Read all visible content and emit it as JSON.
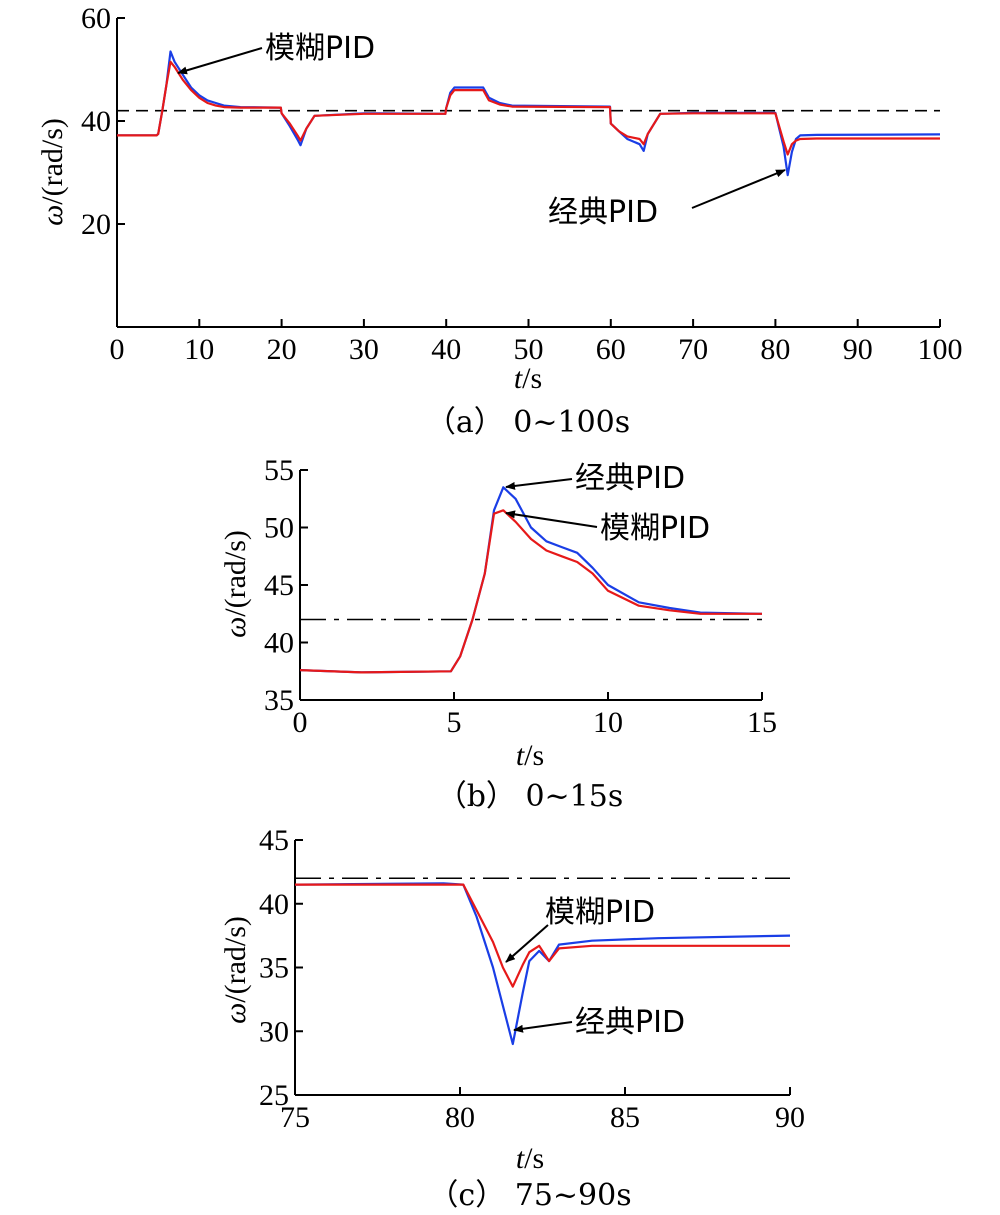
{
  "chart_data": [
    {
      "type": "line",
      "caption": "（a） 0~100s",
      "xlabel": "t/s",
      "ylabel": "ω/(rad/s)",
      "xlim": [
        0,
        100
      ],
      "ylim": [
        0,
        60
      ],
      "xticks": [
        0,
        10,
        20,
        30,
        40,
        50,
        60,
        70,
        80,
        90,
        100
      ],
      "yticks": [
        20,
        40,
        60
      ],
      "reference": {
        "y": 42,
        "style": "dashed"
      },
      "series": [
        {
          "name": "经典PID",
          "color": "#1a3ee6",
          "x": [
            0,
            4.8,
            5.0,
            5.5,
            6.0,
            6.5,
            7,
            8,
            9,
            10,
            11,
            12,
            13,
            15,
            19.9,
            20.0,
            21,
            22,
            22.3,
            23,
            24,
            30,
            39.9,
            40.0,
            40.5,
            41,
            44.5,
            45.2,
            46.5,
            48,
            59.9,
            60.0,
            61,
            62,
            63.5,
            64,
            64.5,
            66,
            70,
            79.9,
            80.0,
            81,
            81.5,
            82,
            82.5,
            83,
            85,
            100
          ],
          "y": [
            37.2,
            37.2,
            37.5,
            42,
            47,
            53.5,
            51.5,
            49,
            46.5,
            45,
            44,
            43.5,
            43,
            42.7,
            42.6,
            41.5,
            39,
            36.2,
            35.3,
            38.5,
            41,
            41.5,
            41.4,
            42.5,
            45.5,
            46.5,
            46.5,
            44.5,
            43.5,
            43,
            42.8,
            39.5,
            38,
            36.5,
            35.5,
            34.2,
            37.5,
            41.4,
            41.6,
            41.6,
            41.6,
            35,
            29.5,
            34,
            36.5,
            37.2,
            37.3,
            37.4
          ]
        },
        {
          "name": "模糊PID",
          "color": "#e61919",
          "x": [
            0,
            4.8,
            5.0,
            5.5,
            6.0,
            6.5,
            7,
            8,
            9,
            10,
            11,
            12,
            13,
            15,
            19.9,
            20.0,
            21,
            22,
            22.3,
            23,
            24,
            30,
            39.9,
            40.0,
            40.5,
            41,
            44.5,
            45.2,
            46.5,
            48,
            59.9,
            60.0,
            61,
            62,
            63.5,
            64,
            64.5,
            66,
            70,
            79.9,
            80.0,
            81,
            81.5,
            82,
            82.5,
            83,
            85,
            100
          ],
          "y": [
            37.2,
            37.2,
            37.5,
            42,
            47,
            51.5,
            50.5,
            48,
            46,
            44.5,
            43.5,
            43,
            42.7,
            42.6,
            42.6,
            41.5,
            39.5,
            37,
            36.2,
            38.5,
            41,
            41.4,
            41.4,
            42.5,
            45,
            46,
            46,
            44,
            43.2,
            42.8,
            42.7,
            39.5,
            38,
            37,
            36.5,
            35.5,
            37.5,
            41.4,
            41.5,
            41.5,
            41.5,
            36,
            33.5,
            35.5,
            36.2,
            36.5,
            36.6,
            36.6
          ]
        }
      ],
      "annotations": [
        "模糊PID",
        "经典PID"
      ]
    },
    {
      "type": "line",
      "caption": "（b） 0~15s",
      "xlabel": "t/s",
      "ylabel": "ω/(rad/s)",
      "xlim": [
        0,
        15
      ],
      "ylim": [
        35,
        55
      ],
      "xticks": [
        0,
        5,
        10,
        15
      ],
      "yticks": [
        35,
        40,
        45,
        50,
        55
      ],
      "reference": {
        "y": 42,
        "style": "dashdot"
      },
      "series": [
        {
          "name": "经典PID",
          "color": "#1a3ee6",
          "x": [
            0,
            2,
            4.9,
            5.2,
            5.6,
            6.0,
            6.3,
            6.6,
            7.0,
            7.5,
            8,
            8.5,
            9,
            9.5,
            10,
            11,
            12,
            13,
            15
          ],
          "y": [
            37.6,
            37.4,
            37.5,
            38.8,
            42,
            46,
            51.5,
            53.5,
            52.5,
            50,
            48.8,
            48.3,
            47.8,
            46.5,
            45,
            43.5,
            43,
            42.6,
            42.5
          ]
        },
        {
          "name": "模糊PID",
          "color": "#e61919",
          "x": [
            0,
            2,
            4.9,
            5.2,
            5.6,
            6.0,
            6.3,
            6.6,
            7.0,
            7.5,
            8,
            8.5,
            9,
            9.5,
            10,
            11,
            12,
            13,
            15
          ],
          "y": [
            37.6,
            37.4,
            37.5,
            38.8,
            42,
            46,
            51.2,
            51.5,
            50.5,
            49,
            48,
            47.5,
            47,
            46,
            44.5,
            43.2,
            42.8,
            42.5,
            42.5
          ]
        }
      ],
      "annotations": [
        "经典PID",
        "模糊PID"
      ]
    },
    {
      "type": "line",
      "caption": "（c） 75~90s",
      "xlabel": "t/s",
      "ylabel": "ω/(rad/s)",
      "xlim": [
        75,
        90
      ],
      "ylim": [
        25,
        45
      ],
      "xticks": [
        75,
        80,
        85,
        90
      ],
      "yticks": [
        25,
        30,
        35,
        40,
        45
      ],
      "reference": {
        "y": 42,
        "style": "dashdot"
      },
      "series": [
        {
          "name": "经典PID",
          "color": "#1a3ee6",
          "x": [
            75,
            79.5,
            80.1,
            80.5,
            81.0,
            81.3,
            81.6,
            81.9,
            82.1,
            82.4,
            82.7,
            83.0,
            84,
            86,
            90
          ],
          "y": [
            41.5,
            41.6,
            41.5,
            39,
            35,
            32,
            29,
            33,
            35.5,
            36.3,
            35.5,
            36.8,
            37.1,
            37.3,
            37.5
          ]
        },
        {
          "name": "模糊PID",
          "color": "#e61919",
          "x": [
            75,
            79.5,
            80.1,
            80.5,
            81.0,
            81.3,
            81.6,
            81.9,
            82.1,
            82.4,
            82.7,
            83.0,
            84,
            86,
            90
          ],
          "y": [
            41.5,
            41.5,
            41.5,
            39.5,
            37,
            35,
            33.5,
            35.2,
            36.2,
            36.7,
            35.5,
            36.5,
            36.7,
            36.7,
            36.7
          ]
        }
      ],
      "annotations": [
        "模糊PID",
        "经典PID"
      ]
    }
  ]
}
